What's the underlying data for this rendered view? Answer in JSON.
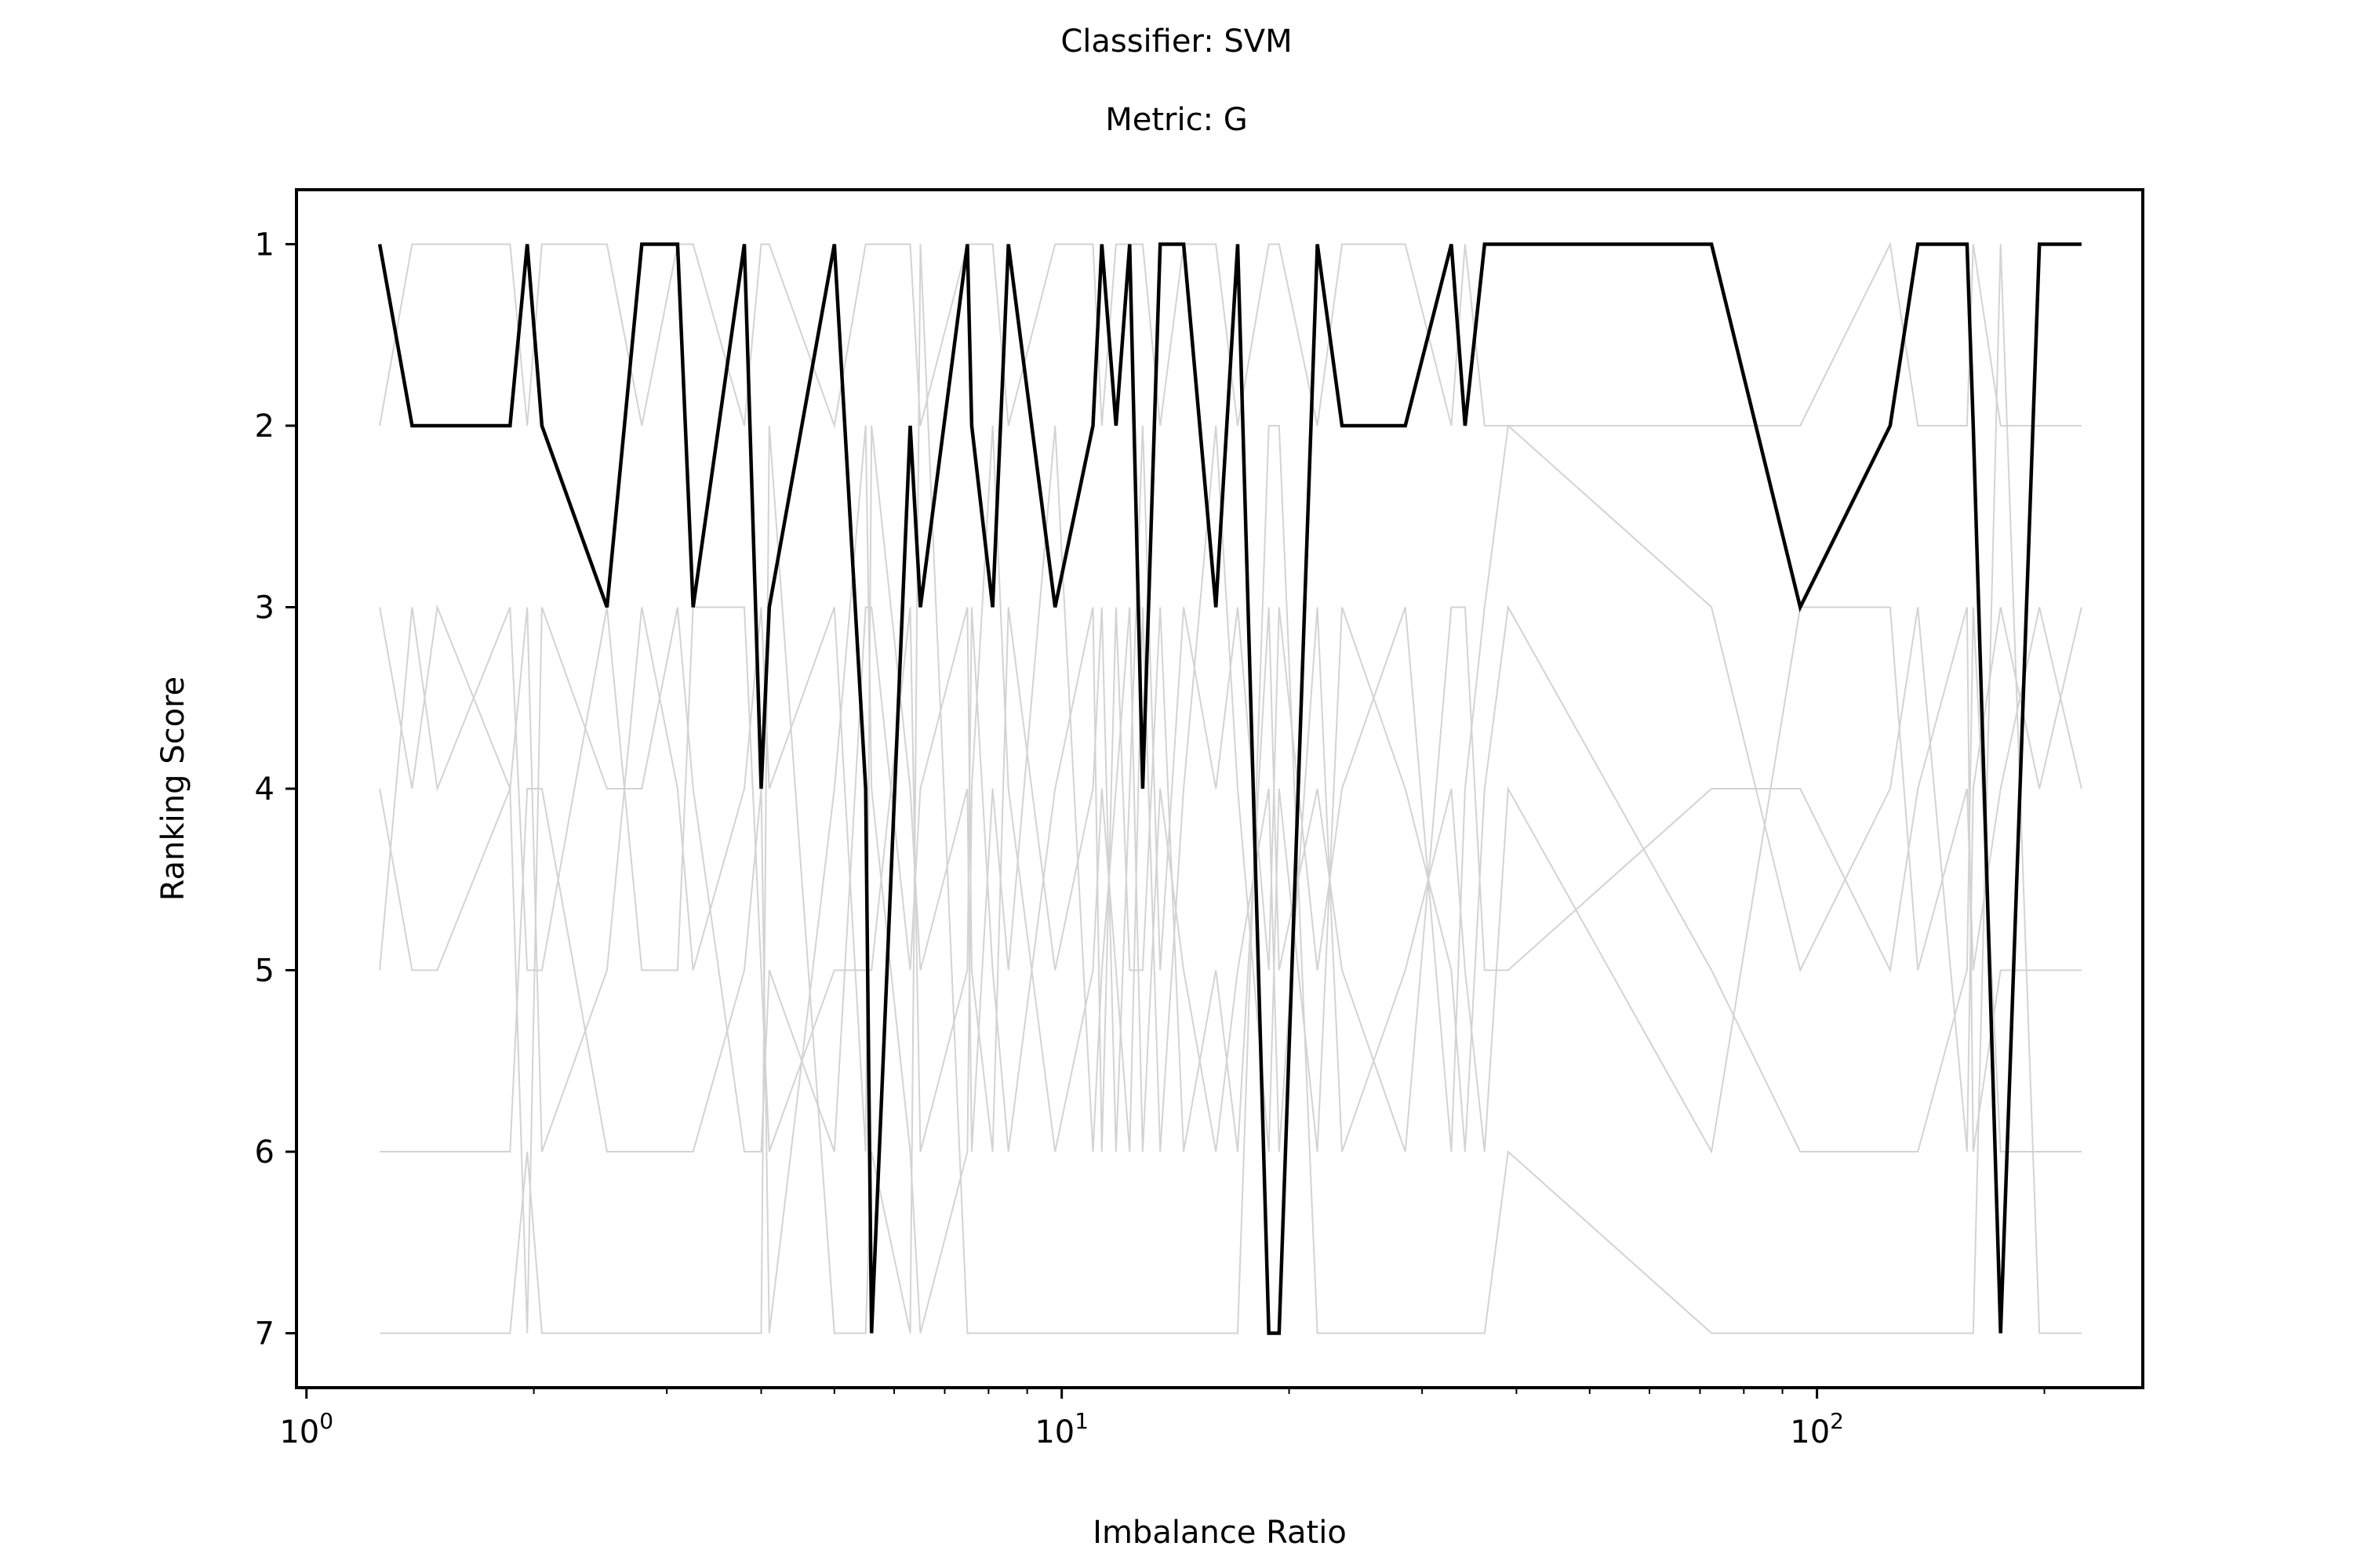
{
  "chart_data": {
    "type": "line",
    "title": "Classifier: SVM",
    "subtitle": "Metric: G",
    "xlabel": "Imbalance Ratio",
    "ylabel": "Ranking Score",
    "xscale": "log",
    "xlim": [
      0.97,
      270
    ],
    "ylim": [
      7.3,
      0.7
    ],
    "y_inverted": true,
    "xticks_major": [
      1,
      10,
      100
    ],
    "xtick_labels": [
      {
        "base": "10",
        "exp": "0"
      },
      {
        "base": "10",
        "exp": "1"
      },
      {
        "base": "10",
        "exp": "2"
      }
    ],
    "yticks": [
      1,
      2,
      3,
      4,
      5,
      6,
      7
    ],
    "ytick_labels": [
      "1",
      "2",
      "3",
      "4",
      "5",
      "6",
      "7"
    ],
    "grid": false,
    "colors": {
      "highlight": "#000000",
      "background": "#d3d3d3",
      "axes": "#000000"
    },
    "x": [
      1.25,
      1.38,
      1.49,
      1.86,
      1.96,
      2.05,
      2.5,
      2.78,
      3.1,
      3.25,
      3.8,
      4.0,
      4.1,
      5.0,
      5.5,
      5.6,
      6.3,
      6.5,
      7.5,
      7.6,
      8.1,
      8.5,
      9.8,
      11.0,
      11.3,
      11.8,
      12.3,
      12.8,
      13.5,
      14.5,
      16.0,
      17.1,
      18.8,
      19.4,
      21.8,
      23.5,
      28.5,
      32.8,
      34.2,
      36.3,
      39.0,
      72.5,
      95.0,
      125.0,
      136.0,
      158.0,
      161.0,
      175.0,
      197.0,
      224.0
    ],
    "series": [
      {
        "role": "highlight",
        "values": [
          1,
          2,
          2,
          2,
          1,
          2,
          3,
          1,
          1,
          3,
          1,
          4,
          3,
          1,
          4,
          7,
          2,
          3,
          1,
          2,
          3,
          1,
          3,
          2,
          1,
          2,
          1,
          4,
          1,
          1,
          3,
          1,
          7,
          7,
          1,
          2,
          2,
          1,
          2,
          1,
          1,
          1,
          3,
          2,
          1,
          1,
          2,
          7,
          1,
          1
        ]
      },
      {
        "role": "background",
        "values": [
          2,
          1,
          1,
          1,
          2,
          1,
          1,
          2,
          1,
          1,
          2,
          1,
          1,
          2,
          1,
          1,
          1,
          2,
          1,
          1,
          1,
          2,
          1,
          1,
          2,
          1,
          1,
          1,
          2,
          1,
          1,
          2,
          1,
          1,
          2,
          1,
          1,
          2,
          1,
          2,
          2,
          2,
          2,
          1,
          2,
          2,
          1,
          2,
          2,
          2
        ]
      },
      {
        "role": "background",
        "values": [
          3,
          4,
          3,
          4,
          7,
          3,
          4,
          4,
          3,
          4,
          6,
          6,
          5,
          6,
          3,
          3,
          5,
          4,
          3,
          5,
          6,
          3,
          5,
          4,
          3,
          6,
          4,
          2,
          5,
          3,
          4,
          3,
          5,
          3,
          5,
          4,
          3,
          6,
          4,
          3,
          2,
          3,
          5,
          4,
          3,
          6,
          4,
          3,
          4,
          3
        ]
      },
      {
        "role": "background",
        "values": [
          4,
          5,
          5,
          4,
          3,
          6,
          5,
          3,
          4,
          5,
          4,
          3,
          4,
          3,
          6,
          2,
          4,
          5,
          4,
          6,
          4,
          5,
          2,
          6,
          5,
          4,
          3,
          6,
          4,
          5,
          6,
          5,
          4,
          6,
          3,
          6,
          5,
          4,
          5,
          6,
          4,
          6,
          3,
          3,
          5,
          4,
          5,
          4,
          3,
          4
        ]
      },
      {
        "role": "background",
        "values": [
          5,
          3,
          4,
          3,
          5,
          5,
          3,
          5,
          5,
          3,
          3,
          5,
          6,
          5,
          5,
          5,
          3,
          6,
          5,
          3,
          5,
          6,
          4,
          3,
          6,
          3,
          5,
          5,
          3,
          6,
          5,
          6,
          3,
          5,
          4,
          5,
          6,
          3,
          3,
          5,
          5,
          4,
          4,
          5,
          4,
          3,
          6,
          5,
          5,
          5
        ]
      },
      {
        "role": "background",
        "values": [
          6,
          6,
          6,
          6,
          4,
          4,
          6,
          6,
          6,
          6,
          5,
          4,
          7,
          4,
          2,
          4,
          6,
          7,
          6,
          4,
          2,
          4,
          6,
          5,
          4,
          5,
          6,
          3,
          6,
          4,
          2,
          4,
          6,
          4,
          6,
          3,
          4,
          5,
          6,
          4,
          3,
          5,
          6,
          6,
          6,
          5,
          3,
          6,
          6,
          6
        ]
      },
      {
        "role": "background",
        "values": [
          7,
          7,
          7,
          7,
          6,
          7,
          7,
          7,
          7,
          7,
          7,
          7,
          2,
          7,
          7,
          6,
          7,
          1,
          7,
          7,
          7,
          7,
          7,
          7,
          7,
          7,
          7,
          7,
          7,
          7,
          7,
          7,
          2,
          2,
          7,
          7,
          7,
          7,
          7,
          7,
          6,
          7,
          7,
          7,
          7,
          7,
          7,
          1,
          7,
          7
        ]
      }
    ]
  }
}
